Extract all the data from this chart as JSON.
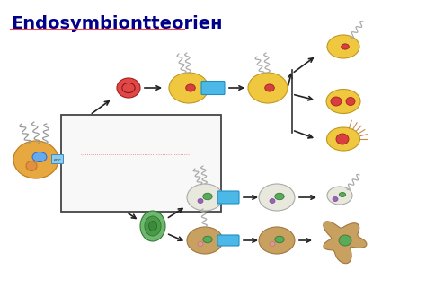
{
  "title": "Endosymbiontteoriен",
  "bg_color": "#ffffff",
  "title_color": "#00008B",
  "title_underline_color": "#FF4444",
  "figsize": [
    4.74,
    3.3
  ],
  "dpi": 100
}
